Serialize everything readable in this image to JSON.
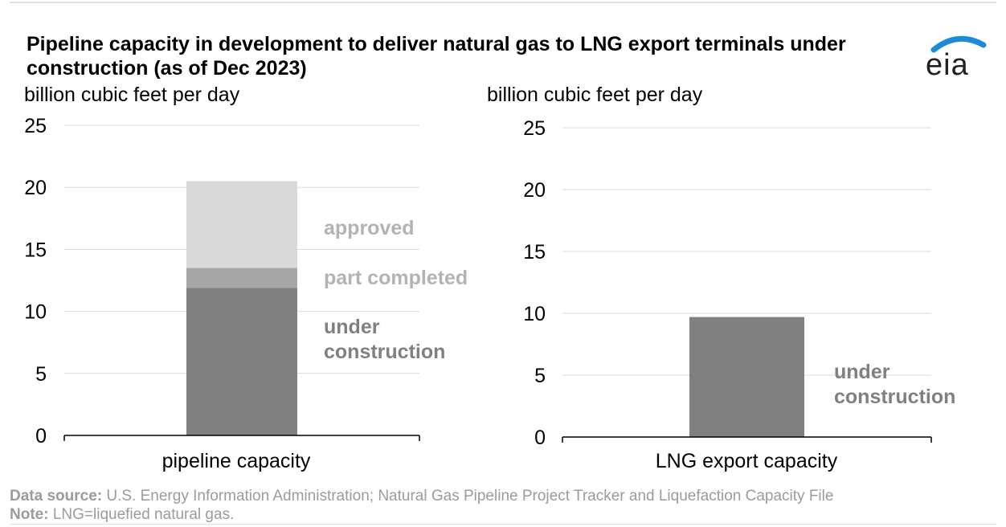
{
  "title": "Pipeline capacity in development to deliver natural gas to LNG export terminals under construction (as of Dec 2023)",
  "logo_text": "eia",
  "colors": {
    "under_construction": "#808080",
    "part_completed": "#a6a6a6",
    "approved": "#d9d9d9",
    "label_light": "#b3b3b3",
    "label_dark": "#808080",
    "grid": "#d9d9d9",
    "logo_arc": "#1f8ad6"
  },
  "chart_data": [
    {
      "type": "bar",
      "stacked": true,
      "ylabel": "billion cubic feet per day",
      "ylim": [
        0,
        25
      ],
      "yticks": [
        "0",
        "5",
        "10",
        "15",
        "20",
        "25"
      ],
      "categories": [
        "pipeline capacity"
      ],
      "series": [
        {
          "name": "under construction",
          "values": [
            11.9
          ]
        },
        {
          "name": "part completed",
          "values": [
            1.6
          ]
        },
        {
          "name": "approved",
          "values": [
            7.0
          ]
        }
      ]
    },
    {
      "type": "bar",
      "stacked": false,
      "ylabel": "billion cubic feet per day",
      "ylim": [
        0,
        25
      ],
      "yticks": [
        "0",
        "5",
        "10",
        "15",
        "20",
        "25"
      ],
      "categories": [
        "LNG export capacity"
      ],
      "series": [
        {
          "name": "under construction",
          "values": [
            9.7
          ]
        }
      ]
    }
  ],
  "series_labels": {
    "approved": "approved",
    "part_completed": "part completed",
    "under_construction_1": "under",
    "under_construction_2": "construction"
  },
  "footer": {
    "source_label": "Data source:",
    "source_text": "U.S. Energy Information Administration; Natural Gas Pipeline Project Tracker and Liquefaction Capacity File",
    "note_label": "Note:",
    "note_text": "LNG=liquefied natural gas."
  }
}
